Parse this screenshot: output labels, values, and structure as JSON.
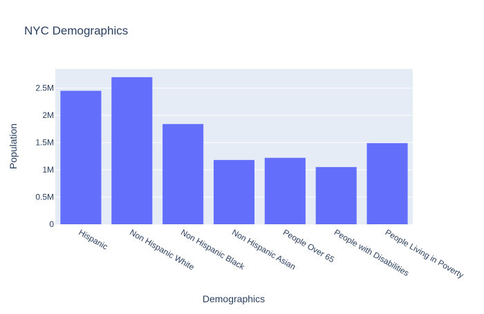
{
  "chart_data": {
    "type": "bar",
    "title": "NYC Demographics",
    "xlabel": "Demographics",
    "ylabel": "Population",
    "categories": [
      "Hispanic",
      "Non Hispanic White",
      "Non Hispanic Black",
      "Non Hispanic Asian",
      "People Over 65",
      "People with Disabilities",
      "People Living in Poverty"
    ],
    "values": [
      2450000,
      2700000,
      1840000,
      1180000,
      1220000,
      1050000,
      1490000
    ],
    "ylim": [
      0,
      2850000
    ],
    "yticks": [
      0,
      500000,
      1000000,
      1500000,
      2000000,
      2500000
    ],
    "ytick_labels": [
      "0",
      "0.5M",
      "1M",
      "1.5M",
      "2M",
      "2.5M"
    ],
    "grid": true,
    "colors": {
      "bar": "#636efa",
      "plot_bg": "#e5ecf6",
      "grid": "#ffffff",
      "text": "#2a3f5f"
    }
  }
}
